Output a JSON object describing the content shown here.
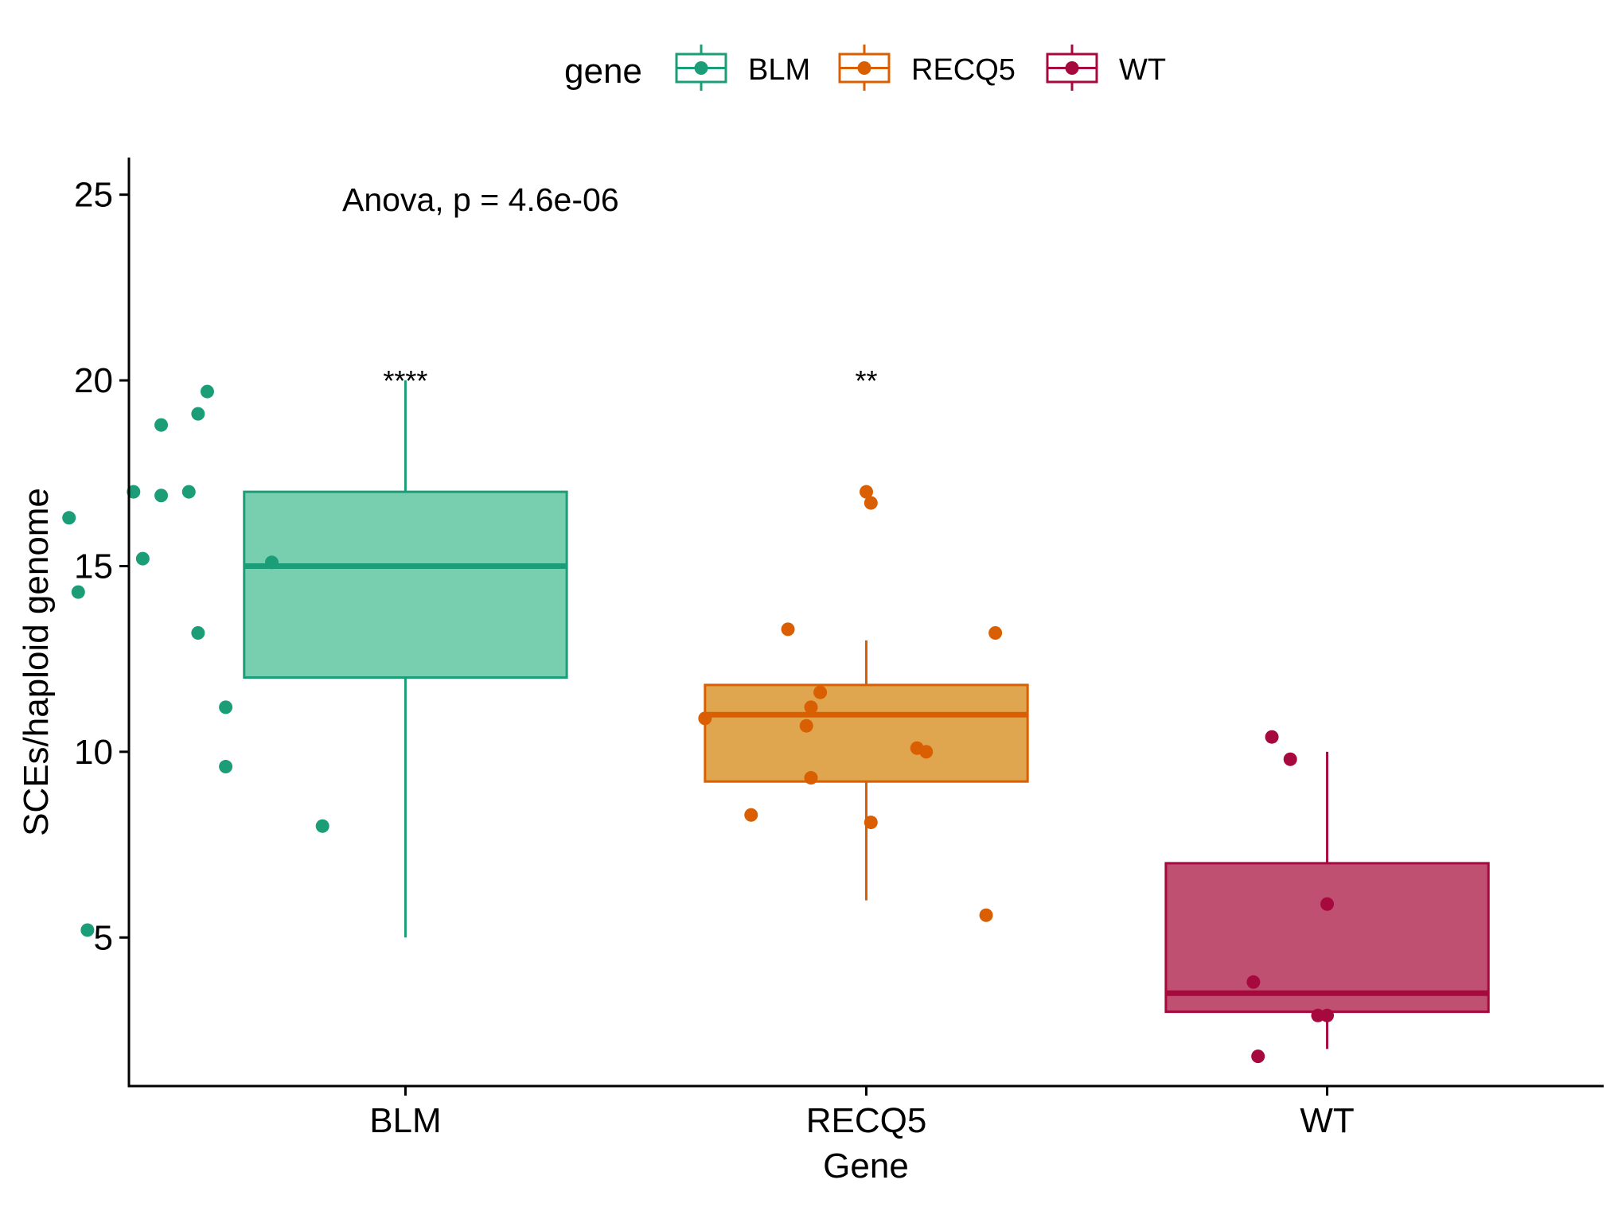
{
  "chart_data": {
    "type": "box",
    "xlabel": "Gene",
    "ylabel": "SCEs/haploid genome",
    "ylim": [
      1,
      26
    ],
    "yticks": [
      5,
      10,
      15,
      20,
      25
    ],
    "categories": [
      "BLM",
      "RECQ5",
      "WT"
    ],
    "legend": {
      "title": "gene",
      "position": "top",
      "entries": [
        "BLM",
        "RECQ5",
        "WT"
      ]
    },
    "annotation": "Anova, p = 4.6e-06",
    "grid": false,
    "series": [
      {
        "name": "BLM",
        "color": "#1b9e77",
        "fill": "#77cfb0",
        "whisker_low": 5,
        "q1": 12,
        "median": 15,
        "q3": 17,
        "whisker_high": 20,
        "significance": "****",
        "points": [
          {
            "x": 0.27,
            "y": 16.3
          },
          {
            "x": 0.29,
            "y": 14.3
          },
          {
            "x": 0.31,
            "y": 5.2
          },
          {
            "x": 0.41,
            "y": 17.0
          },
          {
            "x": 0.43,
            "y": 15.2
          },
          {
            "x": 0.47,
            "y": 16.9
          },
          {
            "x": 0.47,
            "y": 18.8
          },
          {
            "x": 0.53,
            "y": 17.0
          },
          {
            "x": 0.55,
            "y": 13.2
          },
          {
            "x": 0.55,
            "y": 19.1
          },
          {
            "x": 0.57,
            "y": 19.7
          },
          {
            "x": 0.61,
            "y": 11.2
          },
          {
            "x": 0.61,
            "y": 9.6
          },
          {
            "x": 0.71,
            "y": 15.1
          },
          {
            "x": 0.82,
            "y": 8.0
          }
        ]
      },
      {
        "name": "RECQ5",
        "color": "#d95f02",
        "fill": "#e0a64f",
        "whisker_low": 6,
        "q1": 9.2,
        "median": 11,
        "q3": 11.8,
        "whisker_high": 13,
        "significance": "**",
        "points": [
          {
            "x": 1.65,
            "y": 10.9
          },
          {
            "x": 1.75,
            "y": 8.3
          },
          {
            "x": 1.83,
            "y": 13.3
          },
          {
            "x": 1.87,
            "y": 10.7
          },
          {
            "x": 1.88,
            "y": 11.2
          },
          {
            "x": 1.88,
            "y": 9.3
          },
          {
            "x": 1.9,
            "y": 11.6
          },
          {
            "x": 2.0,
            "y": 17.0
          },
          {
            "x": 2.01,
            "y": 16.7
          },
          {
            "x": 2.01,
            "y": 8.1
          },
          {
            "x": 2.11,
            "y": 10.1
          },
          {
            "x": 2.13,
            "y": 10.0
          },
          {
            "x": 2.26,
            "y": 5.6
          },
          {
            "x": 2.28,
            "y": 13.2
          }
        ]
      },
      {
        "name": "WT",
        "color": "#a6093d",
        "fill": "#c05072",
        "whisker_low": 2,
        "q1": 3,
        "median": 3.5,
        "q3": 7,
        "whisker_high": 10,
        "significance": "",
        "points": [
          {
            "x": 2.84,
            "y": 3.8
          },
          {
            "x": 2.85,
            "y": 1.8
          },
          {
            "x": 2.88,
            "y": 10.4
          },
          {
            "x": 2.92,
            "y": 9.8
          },
          {
            "x": 2.98,
            "y": 2.9
          },
          {
            "x": 3.0,
            "y": 2.9
          },
          {
            "x": 3.0,
            "y": 5.9
          }
        ]
      }
    ]
  }
}
